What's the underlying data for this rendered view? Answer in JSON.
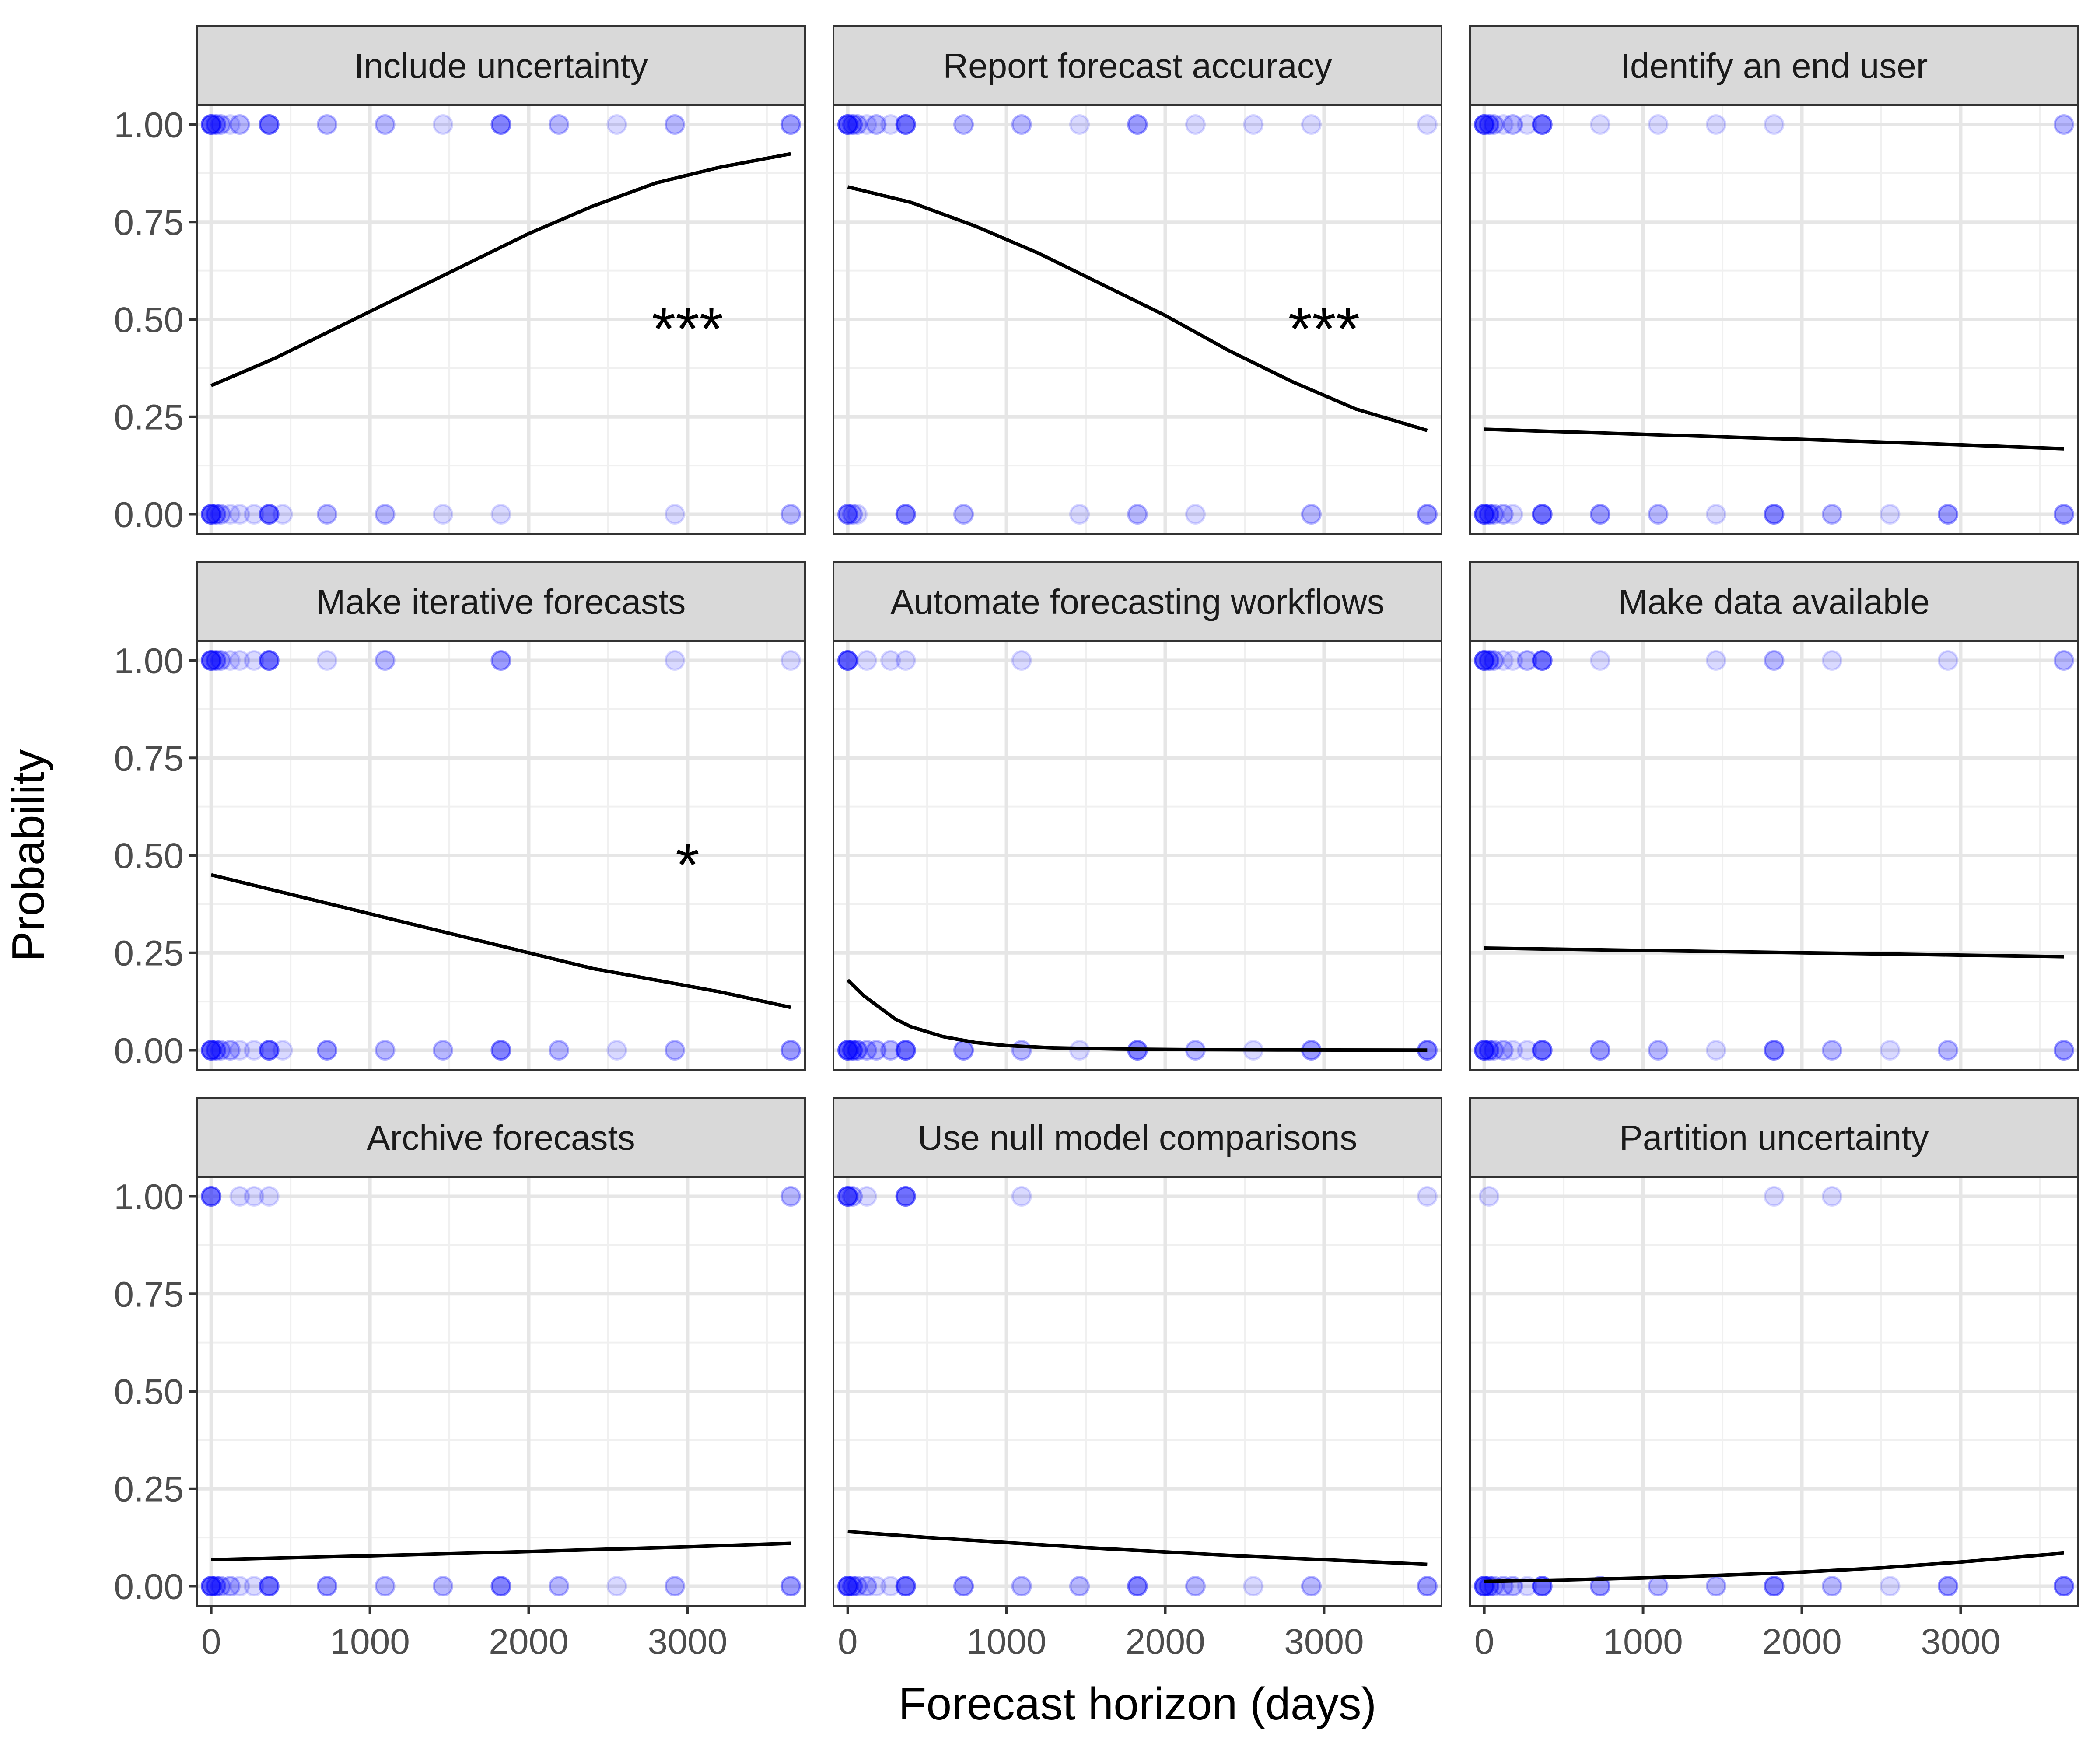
{
  "chart_data": {
    "type": "scatter",
    "layout": "facet-grid-3x3",
    "xlabel": "Forecast horizon (days)",
    "ylabel": "Probability",
    "xlim": [
      -90,
      3740
    ],
    "ylim": [
      -0.05,
      1.05
    ],
    "x_ticks": [
      0,
      1000,
      2000,
      3000
    ],
    "x_tick_labels": [
      "0",
      "1000",
      "2000",
      "3000"
    ],
    "y_ticks": [
      0,
      0.25,
      0.5,
      0.75,
      1
    ],
    "y_tick_labels": [
      "0.00",
      "0.25",
      "0.50",
      "0.75",
      "1.00"
    ],
    "grid": true,
    "point_color": "#0000ff",
    "point_opacity": 0.15,
    "curve_color": "#000000",
    "strip_color": "#d9d9d9",
    "panels": [
      {
        "title": "Include uncertainty",
        "annotation": "***",
        "annotation_at": [
          3000,
          0.5
        ],
        "points_one": [
          [
            0,
            6
          ],
          [
            30,
            3
          ],
          [
            60,
            2
          ],
          [
            120,
            1
          ],
          [
            180,
            2
          ],
          [
            365,
            5
          ],
          [
            730,
            2
          ],
          [
            1095,
            2
          ],
          [
            1460,
            1
          ],
          [
            1825,
            4
          ],
          [
            2190,
            2
          ],
          [
            2555,
            1
          ],
          [
            2920,
            2
          ],
          [
            3650,
            3
          ]
        ],
        "points_zero": [
          [
            0,
            6
          ],
          [
            30,
            3
          ],
          [
            60,
            2
          ],
          [
            120,
            1
          ],
          [
            180,
            1
          ],
          [
            270,
            1
          ],
          [
            365,
            5
          ],
          [
            450,
            1
          ],
          [
            730,
            2
          ],
          [
            1095,
            2
          ],
          [
            1460,
            1
          ],
          [
            1825,
            1
          ],
          [
            2920,
            1
          ],
          [
            3650,
            2
          ]
        ],
        "fit": {
          "x": [
            0,
            400,
            800,
            1200,
            1600,
            2000,
            2400,
            2800,
            3200,
            3650
          ],
          "y": [
            0.33,
            0.4,
            0.48,
            0.56,
            0.64,
            0.72,
            0.79,
            0.85,
            0.89,
            0.925
          ]
        }
      },
      {
        "title": "Report forecast accuracy",
        "annotation": "***",
        "annotation_at": [
          3000,
          0.5
        ],
        "points_one": [
          [
            0,
            6
          ],
          [
            30,
            3
          ],
          [
            60,
            2
          ],
          [
            120,
            1
          ],
          [
            180,
            2
          ],
          [
            270,
            1
          ],
          [
            365,
            5
          ],
          [
            730,
            2
          ],
          [
            1095,
            2
          ],
          [
            1460,
            1
          ],
          [
            1825,
            3
          ],
          [
            2190,
            1
          ],
          [
            2555,
            1
          ],
          [
            2920,
            1
          ],
          [
            3650,
            1
          ]
        ],
        "points_zero": [
          [
            0,
            4
          ],
          [
            30,
            2
          ],
          [
            60,
            1
          ],
          [
            365,
            4
          ],
          [
            730,
            2
          ],
          [
            1460,
            1
          ],
          [
            1825,
            2
          ],
          [
            2190,
            1
          ],
          [
            2920,
            2
          ],
          [
            3650,
            3
          ]
        ],
        "fit": {
          "x": [
            0,
            400,
            800,
            1200,
            1600,
            2000,
            2400,
            2800,
            3200,
            3650
          ],
          "y": [
            0.84,
            0.8,
            0.74,
            0.67,
            0.59,
            0.51,
            0.42,
            0.34,
            0.27,
            0.215
          ]
        }
      },
      {
        "title": "Identify an end user",
        "annotation": "",
        "points_one": [
          [
            0,
            6
          ],
          [
            30,
            3
          ],
          [
            60,
            2
          ],
          [
            120,
            1
          ],
          [
            180,
            2
          ],
          [
            270,
            1
          ],
          [
            365,
            5
          ],
          [
            730,
            1
          ],
          [
            1095,
            1
          ],
          [
            1460,
            1
          ],
          [
            1825,
            1
          ],
          [
            3650,
            2
          ]
        ],
        "points_zero": [
          [
            0,
            6
          ],
          [
            30,
            3
          ],
          [
            60,
            2
          ],
          [
            120,
            2
          ],
          [
            180,
            1
          ],
          [
            365,
            5
          ],
          [
            730,
            3
          ],
          [
            1095,
            2
          ],
          [
            1460,
            1
          ],
          [
            1825,
            4
          ],
          [
            2190,
            2
          ],
          [
            2555,
            1
          ],
          [
            2920,
            3
          ],
          [
            3650,
            3
          ]
        ],
        "fit": {
          "x": [
            0,
            1000,
            2000,
            3000,
            3650
          ],
          "y": [
            0.218,
            0.205,
            0.192,
            0.178,
            0.168
          ]
        }
      },
      {
        "title": "Make iterative forecasts",
        "annotation": "*",
        "annotation_at": [
          3000,
          0.5
        ],
        "points_one": [
          [
            0,
            6
          ],
          [
            30,
            3
          ],
          [
            60,
            2
          ],
          [
            120,
            1
          ],
          [
            180,
            1
          ],
          [
            270,
            1
          ],
          [
            365,
            5
          ],
          [
            730,
            1
          ],
          [
            1095,
            2
          ],
          [
            1825,
            3
          ],
          [
            2920,
            1
          ],
          [
            3650,
            1
          ]
        ],
        "points_zero": [
          [
            0,
            6
          ],
          [
            30,
            3
          ],
          [
            60,
            2
          ],
          [
            120,
            2
          ],
          [
            180,
            1
          ],
          [
            270,
            1
          ],
          [
            365,
            5
          ],
          [
            450,
            1
          ],
          [
            730,
            3
          ],
          [
            1095,
            2
          ],
          [
            1460,
            2
          ],
          [
            1825,
            4
          ],
          [
            2190,
            2
          ],
          [
            2555,
            1
          ],
          [
            2920,
            2
          ],
          [
            3650,
            3
          ]
        ],
        "fit": {
          "x": [
            0,
            400,
            800,
            1200,
            1600,
            2000,
            2400,
            2800,
            3200,
            3650
          ],
          "y": [
            0.45,
            0.41,
            0.37,
            0.33,
            0.29,
            0.25,
            0.21,
            0.18,
            0.15,
            0.11
          ]
        }
      },
      {
        "title": "Automate forecasting workflows",
        "annotation": "",
        "points_one": [
          [
            0,
            6
          ],
          [
            120,
            1
          ],
          [
            270,
            1
          ],
          [
            365,
            1
          ],
          [
            1095,
            1
          ]
        ],
        "points_zero": [
          [
            0,
            6
          ],
          [
            30,
            4
          ],
          [
            60,
            3
          ],
          [
            120,
            2
          ],
          [
            180,
            2
          ],
          [
            270,
            2
          ],
          [
            365,
            5
          ],
          [
            730,
            3
          ],
          [
            1095,
            2
          ],
          [
            1460,
            1
          ],
          [
            1825,
            4
          ],
          [
            2190,
            2
          ],
          [
            2555,
            1
          ],
          [
            2920,
            3
          ],
          [
            3650,
            4
          ]
        ],
        "fit": {
          "x": [
            0,
            100,
            200,
            300,
            400,
            600,
            800,
            1000,
            1300,
            1700,
            2200,
            2800,
            3650
          ],
          "y": [
            0.18,
            0.14,
            0.11,
            0.08,
            0.06,
            0.035,
            0.02,
            0.012,
            0.006,
            0.003,
            0.0015,
            0.0007,
            0.0002
          ]
        }
      },
      {
        "title": "Make data available",
        "annotation": "",
        "points_one": [
          [
            0,
            6
          ],
          [
            30,
            3
          ],
          [
            60,
            2
          ],
          [
            120,
            1
          ],
          [
            180,
            1
          ],
          [
            270,
            2
          ],
          [
            365,
            5
          ],
          [
            730,
            1
          ],
          [
            1460,
            1
          ],
          [
            1825,
            2
          ],
          [
            2190,
            1
          ],
          [
            2920,
            1
          ],
          [
            3650,
            2
          ]
        ],
        "points_zero": [
          [
            0,
            6
          ],
          [
            30,
            3
          ],
          [
            60,
            2
          ],
          [
            120,
            2
          ],
          [
            180,
            1
          ],
          [
            270,
            1
          ],
          [
            365,
            5
          ],
          [
            730,
            3
          ],
          [
            1095,
            2
          ],
          [
            1460,
            1
          ],
          [
            1825,
            4
          ],
          [
            2190,
            2
          ],
          [
            2555,
            1
          ],
          [
            2920,
            2
          ],
          [
            3650,
            3
          ]
        ],
        "fit": {
          "x": [
            0,
            1000,
            2000,
            3000,
            3650
          ],
          "y": [
            0.262,
            0.256,
            0.25,
            0.244,
            0.24
          ]
        }
      },
      {
        "title": "Archive forecasts",
        "annotation": "",
        "points_one": [
          [
            0,
            5
          ],
          [
            180,
            1
          ],
          [
            270,
            1
          ],
          [
            365,
            1
          ],
          [
            3650,
            2
          ]
        ],
        "points_zero": [
          [
            0,
            6
          ],
          [
            30,
            3
          ],
          [
            60,
            2
          ],
          [
            120,
            2
          ],
          [
            180,
            1
          ],
          [
            270,
            1
          ],
          [
            365,
            5
          ],
          [
            730,
            3
          ],
          [
            1095,
            2
          ],
          [
            1460,
            2
          ],
          [
            1825,
            4
          ],
          [
            2190,
            2
          ],
          [
            2555,
            1
          ],
          [
            2920,
            2
          ],
          [
            3650,
            3
          ]
        ],
        "fit": {
          "x": [
            0,
            1000,
            2000,
            3000,
            3650
          ],
          "y": [
            0.068,
            0.078,
            0.089,
            0.101,
            0.11
          ]
        }
      },
      {
        "title": "Use null model comparisons",
        "annotation": "",
        "points_one": [
          [
            0,
            6
          ],
          [
            30,
            2
          ],
          [
            120,
            1
          ],
          [
            365,
            5
          ],
          [
            1095,
            1
          ],
          [
            3650,
            1
          ]
        ],
        "points_zero": [
          [
            0,
            6
          ],
          [
            30,
            3
          ],
          [
            60,
            2
          ],
          [
            120,
            2
          ],
          [
            180,
            1
          ],
          [
            270,
            1
          ],
          [
            365,
            5
          ],
          [
            730,
            3
          ],
          [
            1095,
            2
          ],
          [
            1460,
            2
          ],
          [
            1825,
            4
          ],
          [
            2190,
            2
          ],
          [
            2555,
            1
          ],
          [
            2920,
            2
          ],
          [
            3650,
            3
          ]
        ],
        "fit": {
          "x": [
            0,
            500,
            1000,
            1500,
            2000,
            2500,
            3000,
            3650
          ],
          "y": [
            0.14,
            0.125,
            0.112,
            0.099,
            0.088,
            0.077,
            0.068,
            0.056
          ]
        }
      },
      {
        "title": "Partition uncertainty",
        "annotation": "",
        "points_one": [
          [
            30,
            1
          ],
          [
            1825,
            1
          ],
          [
            2190,
            1
          ]
        ],
        "points_zero": [
          [
            0,
            6
          ],
          [
            30,
            3
          ],
          [
            60,
            2
          ],
          [
            120,
            2
          ],
          [
            180,
            2
          ],
          [
            270,
            1
          ],
          [
            365,
            5
          ],
          [
            730,
            3
          ],
          [
            1095,
            2
          ],
          [
            1460,
            2
          ],
          [
            1825,
            4
          ],
          [
            2190,
            2
          ],
          [
            2555,
            1
          ],
          [
            2920,
            3
          ],
          [
            3650,
            4
          ]
        ],
        "fit": {
          "x": [
            0,
            500,
            1000,
            1500,
            2000,
            2500,
            3000,
            3650
          ],
          "y": [
            0.012,
            0.016,
            0.021,
            0.028,
            0.036,
            0.047,
            0.062,
            0.085
          ]
        }
      }
    ]
  }
}
